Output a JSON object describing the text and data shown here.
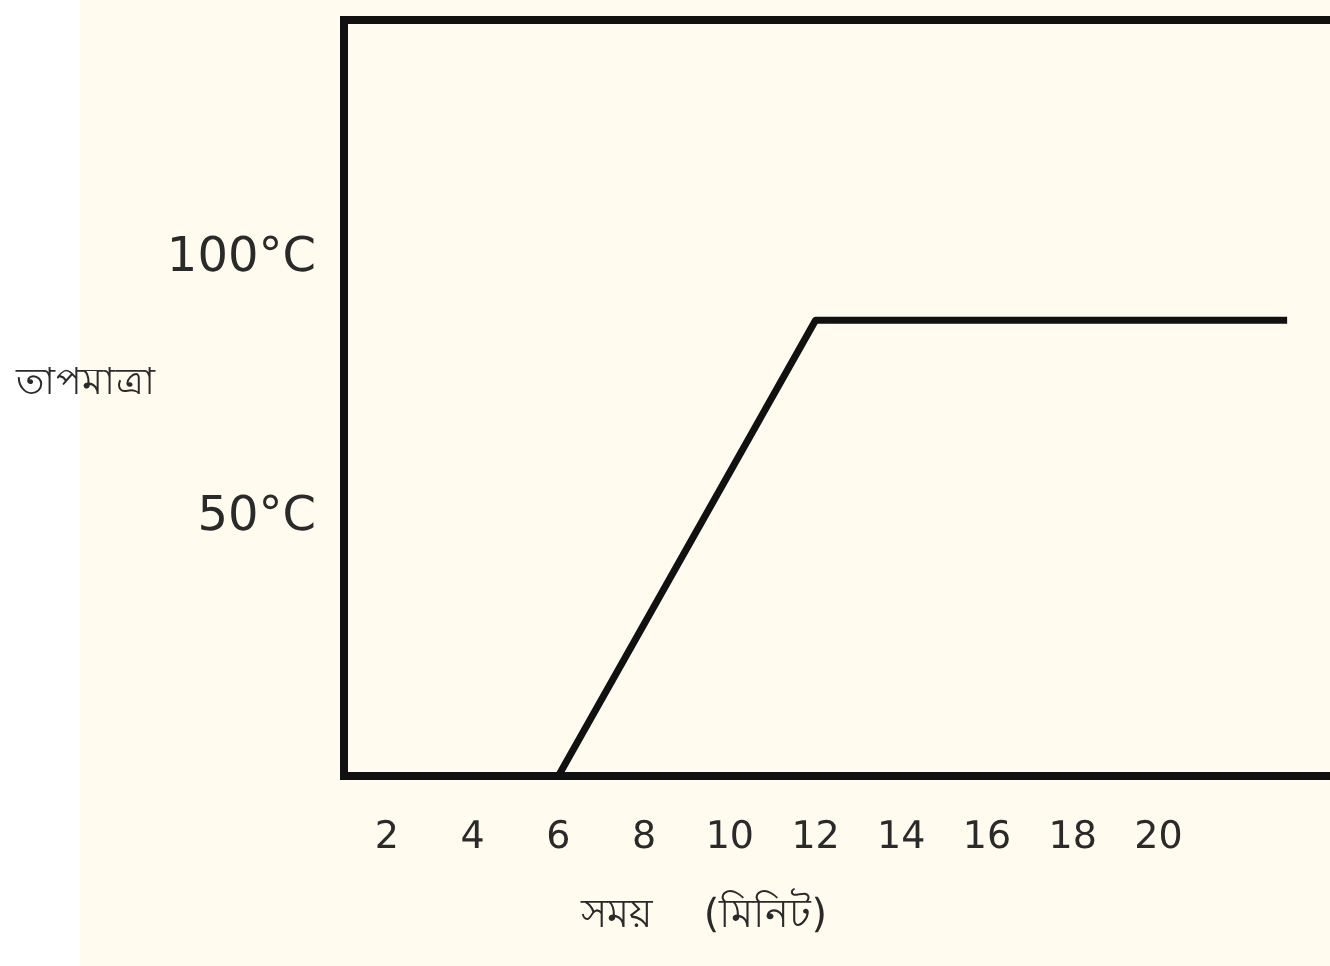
{
  "chart_data": {
    "type": "line",
    "xlabel": "সময়    (মিনিট)",
    "ylabel": "তাপমাত্রা",
    "x": [
      6,
      12,
      23
    ],
    "values": [
      0,
      88,
      88
    ],
    "color": "#111111",
    "line_style": "solid",
    "xlim": [
      1,
      24
    ],
    "ylim": [
      0,
      146
    ],
    "xticks": [
      2,
      4,
      6,
      8,
      10,
      12,
      14,
      16,
      18,
      20
    ],
    "yticks": [
      {
        "value": 50,
        "label": "50°C"
      },
      {
        "value": 100,
        "label": "100°C"
      }
    ]
  }
}
